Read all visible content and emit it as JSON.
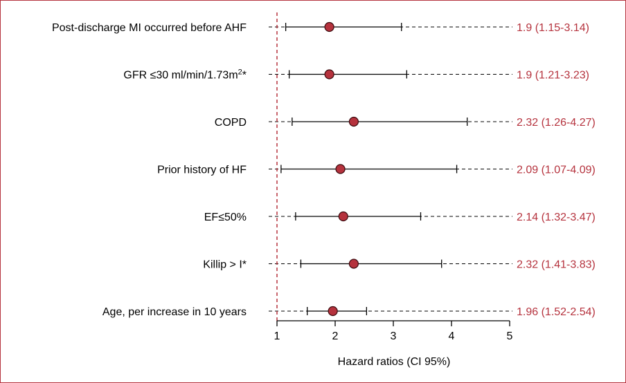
{
  "chart_data": {
    "type": "forest",
    "title": "",
    "xlabel": "Hazard ratios (CI 95%)",
    "ylabel": "",
    "x_ticks": [
      1,
      2,
      3,
      4,
      5
    ],
    "xlim": [
      1,
      5
    ],
    "reference_line": 1,
    "rows": [
      {
        "label": "Post-discharge MI occurred before AHF",
        "hr": 1.9,
        "ci_low": 1.15,
        "ci_high": 3.14,
        "text": "1.9 (1.15-3.14)"
      },
      {
        "label": "GFR ≤30 ml/min/1.73m",
        "label_sup": "2",
        "label_suffix": "*",
        "hr": 1.9,
        "ci_low": 1.21,
        "ci_high": 3.23,
        "text": "1.9 (1.21-3.23)"
      },
      {
        "label": "COPD",
        "hr": 2.32,
        "ci_low": 1.26,
        "ci_high": 4.27,
        "text": "2.32 (1.26-4.27)"
      },
      {
        "label": "Prior history of HF",
        "hr": 2.09,
        "ci_low": 1.07,
        "ci_high": 4.09,
        "text": "2.09 (1.07-4.09)"
      },
      {
        "label": "EF≤50%",
        "hr": 2.14,
        "ci_low": 1.32,
        "ci_high": 3.47,
        "text": "2.14 (1.32-3.47)"
      },
      {
        "label": "Killip > I*",
        "hr": 2.32,
        "ci_low": 1.41,
        "ci_high": 3.83,
        "text": "2.32 (1.41-3.83)"
      },
      {
        "label": "Age, per increase in 10 years",
        "hr": 1.96,
        "ci_low": 1.52,
        "ci_high": 2.54,
        "text": "1.96 (1.52-2.54)"
      }
    ],
    "colors": {
      "marker": "#b5323d",
      "value_text": "#b5323d",
      "reference_line": "#b5323d",
      "border": "#b5323d",
      "axis": "#000000"
    }
  }
}
